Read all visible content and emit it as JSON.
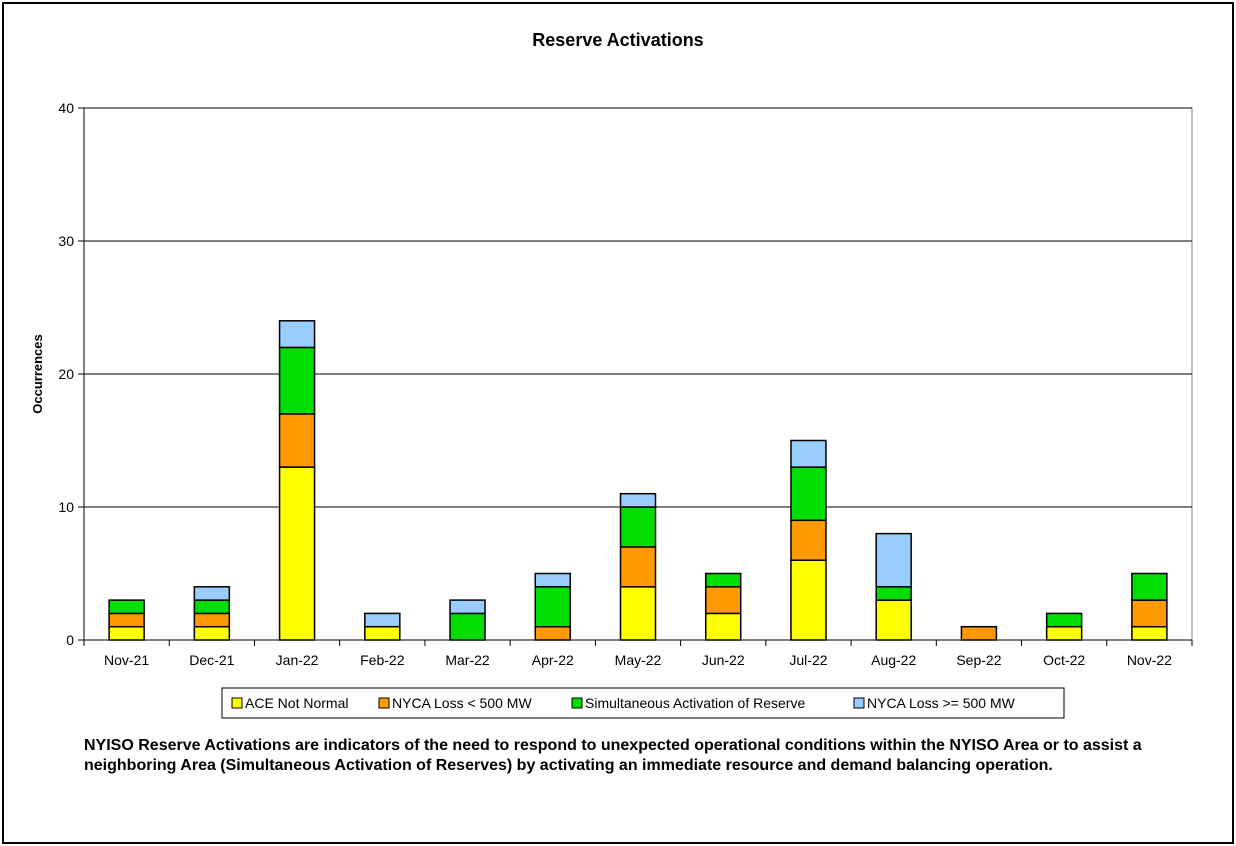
{
  "chart_data": {
    "type": "bar",
    "stacked": true,
    "title": "Reserve Activations",
    "xlabel": "",
    "ylabel": "Occurrences",
    "ylim": [
      0,
      40
    ],
    "yticks": [
      0,
      10,
      20,
      30,
      40
    ],
    "grid": true,
    "legend_position": "bottom",
    "categories": [
      "Nov-21",
      "Dec-21",
      "Jan-22",
      "Feb-22",
      "Mar-22",
      "Apr-22",
      "May-22",
      "Jun-22",
      "Jul-22",
      "Aug-22",
      "Sep-22",
      "Oct-22",
      "Nov-22"
    ],
    "series": [
      {
        "name": "ACE Not Normal",
        "color": "#ffff00",
        "values": [
          1,
          1,
          13,
          1,
          0,
          0,
          4,
          2,
          6,
          3,
          0,
          1,
          1
        ]
      },
      {
        "name": "NYCA Loss < 500 MW",
        "color": "#ff9900",
        "values": [
          1,
          1,
          4,
          0,
          0,
          1,
          3,
          2,
          3,
          0,
          1,
          0,
          2
        ]
      },
      {
        "name": "Simultaneous Activation of Reserve",
        "color": "#00dd00",
        "values": [
          1,
          1,
          5,
          0,
          2,
          3,
          3,
          1,
          4,
          1,
          0,
          1,
          2
        ]
      },
      {
        "name": "NYCA Loss >= 500 MW",
        "color": "#99ccff",
        "values": [
          0,
          1,
          2,
          1,
          1,
          1,
          1,
          0,
          2,
          4,
          0,
          0,
          0
        ]
      }
    ]
  },
  "note": "NYISO Reserve Activations are indicators of the need to respond to unexpected operational conditions within the NYISO Area or to assist a neighboring Area (Simultaneous Activation of Reserves) by activating an immediate resource and demand balancing operation."
}
